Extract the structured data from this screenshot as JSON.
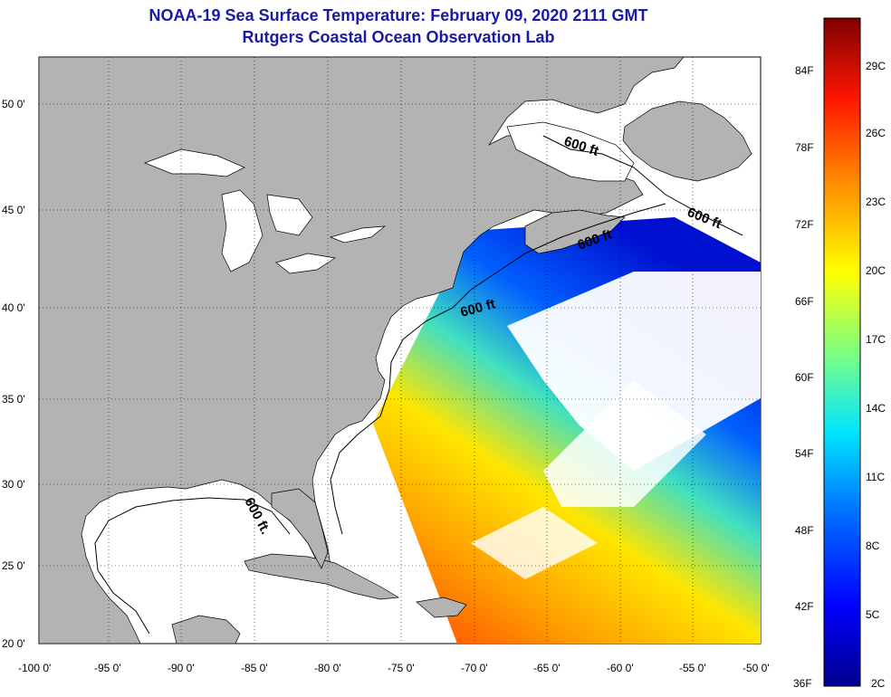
{
  "title_line1": "NOAA-19 Sea Surface Temperature:  February 09, 2020 2111 GMT",
  "title_line2": "Rutgers Coastal Ocean Observation Lab",
  "longitude_labels": [
    "-100 0'",
    "-95 0'",
    "-90 0'",
    "-85 0'",
    "-80 0'",
    "-75 0'",
    "-70 0'",
    "-65 0'",
    "-60 0'",
    "-55 0'",
    "-50 0'"
  ],
  "latitude_labels": [
    "50 0'",
    "45 0'",
    "40 0'",
    "35 0'",
    "30 0'",
    "25 0'",
    "20 0'"
  ],
  "isobath_label": "600 ft",
  "isobath_label_alt": "600 ft.",
  "colorbar": {
    "fahrenheit_labels": [
      "84F",
      "78F",
      "72F",
      "66F",
      "60F",
      "54F",
      "48F",
      "42F",
      "36F"
    ],
    "celsius_labels": [
      "29C",
      "26C",
      "23C",
      "20C",
      "17C",
      "14C",
      "11C",
      "8C",
      "5C",
      "2C"
    ]
  },
  "colors": {
    "land": "#b3b3b3",
    "no_data": "#ffffff",
    "title": "#1a1aa6"
  }
}
